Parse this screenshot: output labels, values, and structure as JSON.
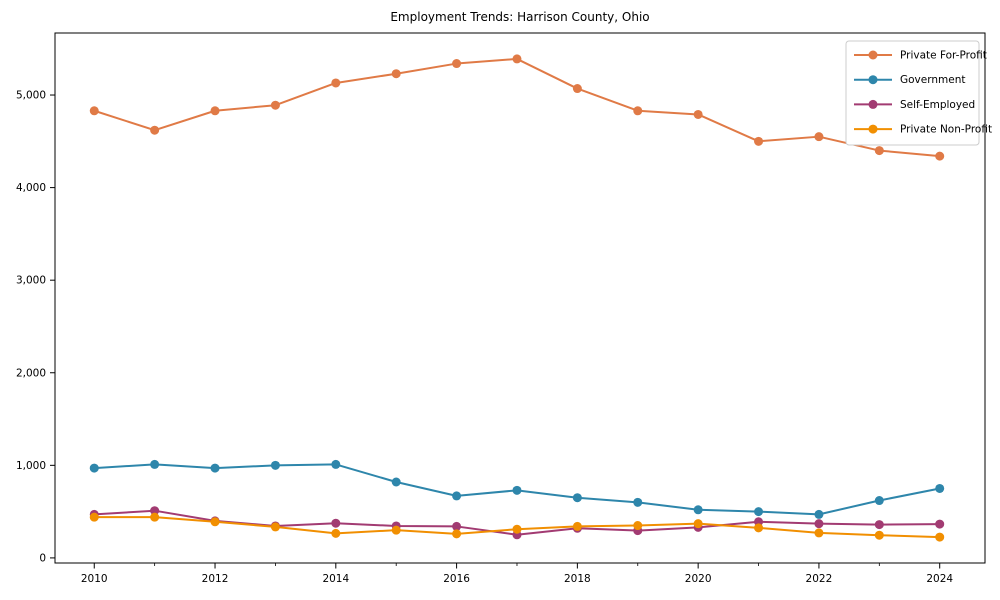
{
  "chart_data": {
    "type": "line",
    "title": "Employment Trends: Harrison County, Ohio",
    "xlabel": "",
    "ylabel": "",
    "x": [
      2010,
      2011,
      2012,
      2013,
      2014,
      2015,
      2016,
      2017,
      2018,
      2019,
      2020,
      2021,
      2022,
      2023,
      2024
    ],
    "series": [
      {
        "name": "Private For-Profit",
        "color": "#e07a46",
        "values": [
          4830,
          4620,
          4830,
          4890,
          5130,
          5230,
          5340,
          5390,
          5070,
          4830,
          4790,
          4500,
          4550,
          4400,
          4340
        ]
      },
      {
        "name": "Government",
        "color": "#2e86ab",
        "values": [
          970,
          1010,
          970,
          1000,
          1010,
          820,
          670,
          730,
          650,
          600,
          520,
          500,
          470,
          620,
          750
        ]
      },
      {
        "name": "Self-Employed",
        "color": "#a23b72",
        "values": [
          470,
          510,
          400,
          345,
          375,
          345,
          340,
          250,
          320,
          295,
          330,
          390,
          370,
          360,
          365
        ]
      },
      {
        "name": "Private Non-Profit",
        "color": "#f18f01",
        "values": [
          440,
          440,
          390,
          335,
          265,
          300,
          260,
          310,
          340,
          350,
          370,
          325,
          270,
          245,
          225
        ]
      }
    ],
    "x_major_ticks": [
      2010,
      2012,
      2014,
      2016,
      2018,
      2020,
      2022,
      2024
    ],
    "x_major_tick_labels": [
      "2010",
      "2012",
      "2014",
      "2016",
      "2018",
      "2020",
      "2022",
      "2024"
    ],
    "x_minor_ticks": [
      2011,
      2013,
      2015,
      2017,
      2019,
      2021,
      2023
    ],
    "y_ticks": [
      0,
      1000,
      2000,
      3000,
      4000,
      5000
    ],
    "y_tick_labels": [
      "0",
      "1,000",
      "2,000",
      "3,000",
      "4,000",
      "5,000"
    ],
    "xlim": [
      2009.35,
      2024.75
    ],
    "ylim": [
      -55,
      5670
    ],
    "grid": false,
    "legend_position": "upper right",
    "axis_color": "#000000",
    "legend_border_color": "#cccccc",
    "legend_background": "#ffffff"
  }
}
